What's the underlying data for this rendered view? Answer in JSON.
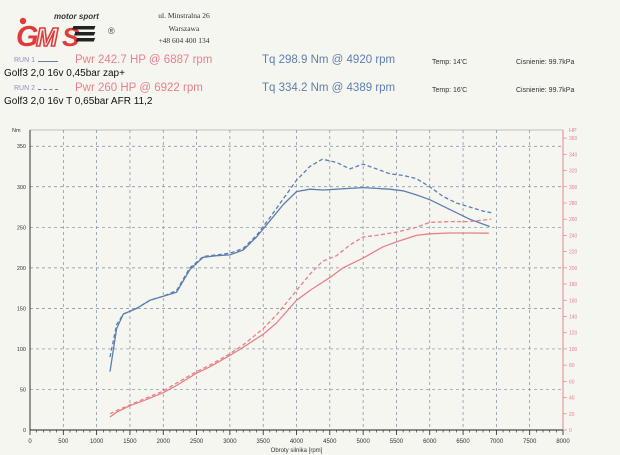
{
  "header": {
    "address_lines": [
      "ul. Minstralna 26",
      "Warszawa",
      "+48 604 400 134"
    ]
  },
  "runs": [
    {
      "label": "RUN 1",
      "power": "Pwr 242.7 HP @ 6887 rpm",
      "torque": "Tq 298.9 Nm @ 4920 rpm",
      "temp": "Temp: 14'C",
      "pressure": "Cisnienie: 99.7kPa",
      "config": "Golf3 2,0 16v 0,45bar zap+"
    },
    {
      "label": "RUN 2",
      "power": "Pwr 260 HP @ 6922 rpm",
      "torque": "Tq 334.2 Nm @ 4389 rpm",
      "temp": "Temp: 16'C",
      "pressure": "Cisnienie: 99.7kPa",
      "config": "Golf3 2,0 16v T 0,65bar AFR 11,2"
    }
  ],
  "colors": {
    "torque": "#5b7fae",
    "power": "#e8808a",
    "grid": "#7a8aa0",
    "axis": "#222222"
  },
  "chart_data": {
    "type": "line",
    "xlabel": "Obroty silnika [rpm]",
    "left_axis_unit": "Nm",
    "right_axis_unit": "HP",
    "xlim": [
      0,
      8000
    ],
    "ylim_left": [
      0,
      370
    ],
    "ylim_right": [
      0,
      370
    ],
    "x_ticks": [
      0,
      500,
      1000,
      1500,
      2000,
      2500,
      3000,
      3500,
      4000,
      4500,
      5000,
      5500,
      6000,
      6500,
      7000,
      7500,
      8000
    ],
    "left_ticks": [
      0,
      50,
      100,
      150,
      200,
      250,
      300,
      350
    ],
    "right_ticks": [
      0,
      20,
      40,
      60,
      80,
      100,
      120,
      140,
      160,
      180,
      200,
      220,
      240,
      260,
      280,
      300,
      320,
      340,
      360
    ],
    "grid": true,
    "series": [
      {
        "name": "RUN 1",
        "quantity": "torque",
        "axis": "left",
        "style": "solid",
        "x": [
          1200,
          1300,
          1400,
          1600,
          1800,
          2000,
          2200,
          2400,
          2600,
          2800,
          3000,
          3200,
          3400,
          3600,
          3800,
          4000,
          4200,
          4400,
          4600,
          4800,
          5000,
          5200,
          5400,
          5600,
          5800,
          6000,
          6200,
          6400,
          6600,
          6800,
          6900
        ],
        "y": [
          72,
          125,
          143,
          150,
          160,
          165,
          170,
          198,
          213,
          215,
          216,
          222,
          238,
          258,
          278,
          294,
          297,
          296,
          297,
          298,
          299,
          298,
          297,
          295,
          290,
          284,
          276,
          268,
          260,
          254,
          251
        ]
      },
      {
        "name": "RUN 2",
        "quantity": "torque",
        "axis": "left",
        "style": "dashed",
        "x": [
          1200,
          1300,
          1400,
          1600,
          1800,
          2000,
          2200,
          2400,
          2600,
          2800,
          3000,
          3200,
          3400,
          3600,
          3800,
          4000,
          4200,
          4389,
          4600,
          4800,
          5000,
          5200,
          5400,
          5600,
          5800,
          6000,
          6200,
          6400,
          6600,
          6800,
          6922
        ],
        "y": [
          90,
          130,
          143,
          150,
          160,
          165,
          172,
          200,
          214,
          216,
          218,
          224,
          240,
          262,
          285,
          308,
          325,
          334,
          330,
          322,
          328,
          322,
          316,
          314,
          310,
          300,
          288,
          280,
          275,
          270,
          268
        ]
      },
      {
        "name": "RUN 1",
        "quantity": "power",
        "axis": "right",
        "style": "solid",
        "x": [
          1200,
          1300,
          1500,
          1700,
          2000,
          2200,
          2500,
          2700,
          3000,
          3200,
          3500,
          3700,
          4000,
          4200,
          4500,
          4700,
          5000,
          5300,
          5500,
          5800,
          6000,
          6300,
          6600,
          6887
        ],
        "y": [
          16,
          22,
          30,
          36,
          46,
          55,
          70,
          78,
          92,
          102,
          118,
          132,
          160,
          172,
          188,
          200,
          212,
          226,
          232,
          240,
          242,
          243,
          243,
          242.7
        ]
      },
      {
        "name": "RUN 2",
        "quantity": "power",
        "axis": "right",
        "style": "dashed",
        "x": [
          1200,
          1300,
          1500,
          1700,
          2000,
          2200,
          2500,
          2700,
          3000,
          3200,
          3500,
          3700,
          4000,
          4200,
          4389,
          4600,
          4800,
          5000,
          5200,
          5500,
          5800,
          6000,
          6300,
          6600,
          6922
        ],
        "y": [
          20,
          24,
          31,
          38,
          48,
          58,
          72,
          80,
          94,
          105,
          125,
          142,
          172,
          192,
          208,
          215,
          228,
          238,
          240,
          244,
          250,
          256,
          257,
          257,
          260
        ]
      }
    ]
  }
}
